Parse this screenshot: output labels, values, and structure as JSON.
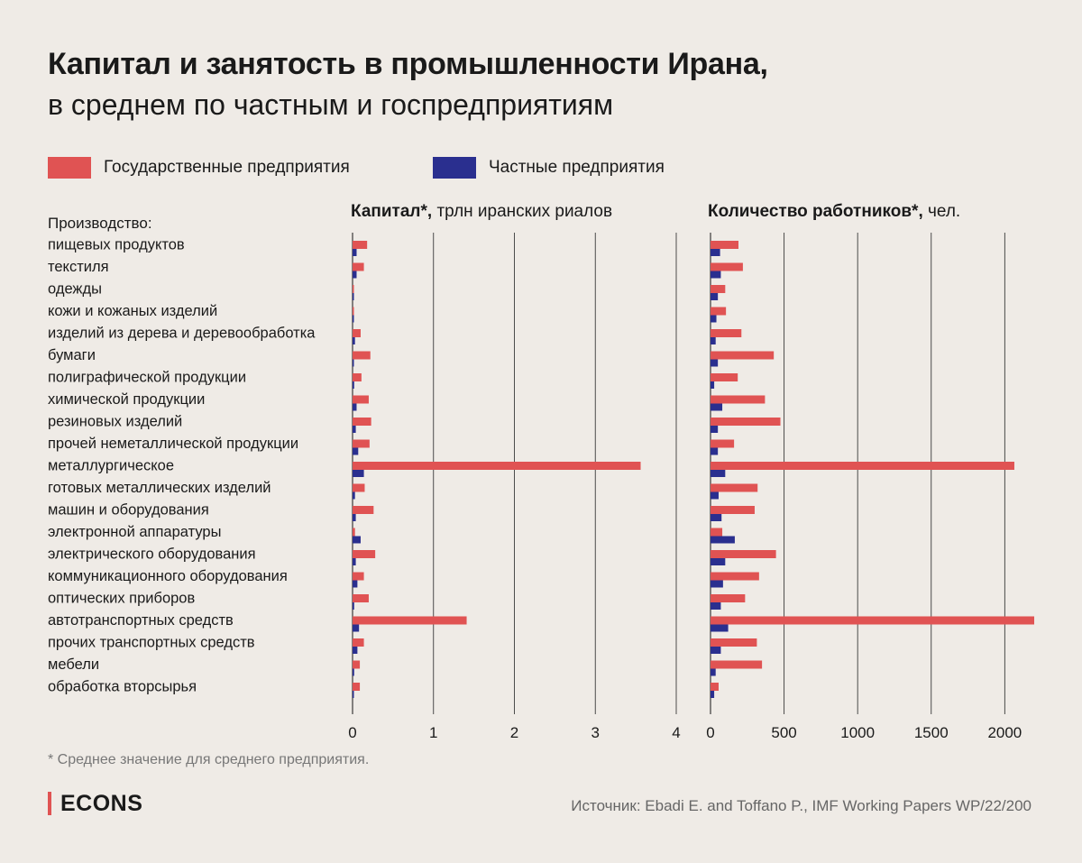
{
  "title": "Капитал и занятость в промышленности Ирана,",
  "subtitle": "в среднем по частным и госпредприятиям",
  "legend": [
    {
      "label": "Государственные предприятия",
      "color": "#e05353"
    },
    {
      "label": "Частные предприятия",
      "color": "#2a2f8f"
    }
  ],
  "category_header": "Производство:",
  "footnote": "* Среднее значение для среднего предприятия.",
  "brand": "ECONS",
  "source": "Источник: Ebadi E. and Toffano P., IMF Working Papers WP/22/200",
  "colors": {
    "state": "#e05353",
    "private": "#2a2f8f",
    "grid": "#3a3a3a",
    "background": "#efebe6"
  },
  "chart_data": [
    {
      "type": "bar",
      "orientation": "horizontal",
      "title_bold": "Капитал*,",
      "title_rest": " трлн иранских риалов",
      "categories": [
        "пищевых продуктов",
        "текстиля",
        "одежды",
        "кожи и кожаных изделий",
        "изделий из дерева и деревообработка",
        "бумаги",
        "полиграфической продукции",
        "химической продукции",
        "резиновых изделий",
        "прочей неметаллической продукции",
        "металлургическое",
        "готовых металлических изделий",
        "машин и оборудования",
        "электронной аппаратуры",
        "электрического оборудования",
        "коммуникационного оборудования",
        "оптических приборов",
        "автотранспортных средств",
        "прочих транспортных средств",
        "мебели",
        "обработка вторсырья"
      ],
      "xlim": [
        0,
        4
      ],
      "ticks": [
        0,
        1,
        2,
        3,
        4
      ],
      "tick_labels": [
        "0",
        "1",
        "2",
        "3",
        "4"
      ],
      "series": [
        {
          "name": "Государственные предприятия",
          "values": [
            0.18,
            0.14,
            0.01,
            0.01,
            0.1,
            0.22,
            0.11,
            0.2,
            0.23,
            0.21,
            3.56,
            0.15,
            0.26,
            0.03,
            0.28,
            0.14,
            0.2,
            1.41,
            0.14,
            0.09,
            0.09
          ]
        },
        {
          "name": "Частные предприятия",
          "values": [
            0.05,
            0.05,
            0.01,
            0.01,
            0.03,
            0.01,
            0.02,
            0.05,
            0.04,
            0.07,
            0.14,
            0.03,
            0.04,
            0.1,
            0.04,
            0.06,
            0.02,
            0.08,
            0.06,
            0.02,
            0.01
          ]
        }
      ]
    },
    {
      "type": "bar",
      "orientation": "horizontal",
      "title_bold": "Количество работников*,",
      "title_rest": " чел.",
      "categories": [
        "пищевых продуктов",
        "текстиля",
        "одежды",
        "кожи и кожаных изделий",
        "изделий из дерева и деревообработка",
        "бумаги",
        "полиграфической продукции",
        "химической продукции",
        "резиновых изделий",
        "прочей неметаллической продукции",
        "металлургическое",
        "готовых металлических изделий",
        "машин и оборудования",
        "электронной аппаратуры",
        "электрического оборудования",
        "коммуникационного оборудования",
        "оптических приборов",
        "автотранспортных средств",
        "прочих транспортных средств",
        "мебели",
        "обработка вторсырья"
      ],
      "xlim": [
        0,
        2200
      ],
      "ticks": [
        0,
        500,
        1000,
        1500,
        2000
      ],
      "tick_labels": [
        "0",
        "500",
        "1000",
        "1500",
        "2000"
      ],
      "series": [
        {
          "name": "Государственные предприятия",
          "values": [
            190,
            220,
            100,
            105,
            210,
            430,
            185,
            370,
            475,
            160,
            2065,
            320,
            300,
            80,
            445,
            330,
            235,
            2200,
            315,
            350,
            55
          ]
        },
        {
          "name": "Частные предприятия",
          "values": [
            65,
            70,
            50,
            40,
            35,
            50,
            25,
            80,
            50,
            50,
            100,
            55,
            75,
            165,
            100,
            85,
            70,
            120,
            70,
            35,
            25
          ]
        }
      ]
    }
  ]
}
